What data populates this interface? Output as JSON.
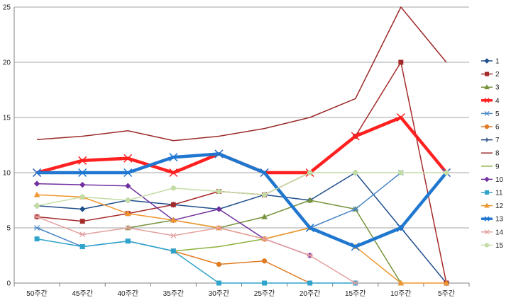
{
  "chart_data": {
    "type": "line",
    "categories": [
      "50주간",
      "45주간",
      "40주간",
      "35주간",
      "30주간",
      "25주간",
      "20주간",
      "15주간",
      "10주간",
      "5주간"
    ],
    "ylim": [
      0,
      25
    ],
    "yticks": [
      0,
      5,
      10,
      15,
      20,
      25
    ],
    "grid": "horizontal",
    "legend": "right",
    "series": [
      {
        "name": "1",
        "color": "#1f4e8c",
        "marker": "diamond",
        "bold": false,
        "values": [
          7,
          6.7,
          7.5,
          7.1,
          6.7,
          8,
          7.5,
          10,
          5,
          0
        ]
      },
      {
        "name": "2",
        "color": "#a52a2a",
        "marker": "square",
        "bold": false,
        "values": [
          6,
          5.6,
          6.3,
          7.1,
          8.3,
          8,
          10,
          13.3,
          20,
          0
        ]
      },
      {
        "name": "3",
        "color": "#77933c",
        "marker": "triangle",
        "bold": false,
        "values": [
          null,
          null,
          5,
          5.7,
          5,
          6,
          7.5,
          6.7,
          0,
          null
        ]
      },
      {
        "name": "4",
        "color": "#ff2020",
        "marker": "x",
        "bold": true,
        "values": [
          10,
          11.1,
          11.3,
          10,
          11.7,
          10,
          10,
          13.3,
          15,
          10
        ]
      },
      {
        "name": "5",
        "color": "#4a86c6",
        "marker": "star",
        "bold": false,
        "values": [
          5,
          3.3,
          3.8,
          2.9,
          null,
          null,
          5,
          6.7,
          10,
          null
        ]
      },
      {
        "name": "6",
        "color": "#e07b24",
        "marker": "circle",
        "bold": false,
        "values": [
          null,
          null,
          null,
          2.9,
          1.7,
          2,
          0,
          null,
          null,
          null
        ]
      },
      {
        "name": "7",
        "color": "#1f3f7a",
        "marker": "plus",
        "bold": false,
        "values": [
          null,
          null,
          null,
          null,
          null,
          null,
          null,
          10,
          null,
          0
        ]
      },
      {
        "name": "8",
        "color": "#9c2a2a",
        "marker": "none",
        "bold": false,
        "values": [
          13,
          13.3,
          13.8,
          12.9,
          13.3,
          14,
          15,
          16.7,
          25,
          20
        ]
      },
      {
        "name": "9",
        "color": "#8db33e",
        "marker": "none",
        "bold": false,
        "values": [
          null,
          null,
          null,
          2.9,
          3.3,
          4,
          5,
          null,
          null,
          null
        ]
      },
      {
        "name": "10",
        "color": "#7030a0",
        "marker": "diamond",
        "bold": false,
        "values": [
          9,
          8.9,
          8.8,
          5.7,
          6.7,
          4,
          2.5,
          null,
          null,
          null
        ]
      },
      {
        "name": "11",
        "color": "#2fa3c9",
        "marker": "square",
        "bold": false,
        "values": [
          4,
          3.3,
          3.8,
          2.9,
          0,
          0,
          0,
          0,
          null,
          null
        ]
      },
      {
        "name": "12",
        "color": "#f0962e",
        "marker": "triangle",
        "bold": false,
        "values": [
          8,
          7.8,
          6.3,
          5.7,
          5,
          4,
          5,
          3.3,
          0,
          0
        ]
      },
      {
        "name": "13",
        "color": "#1f77d0",
        "marker": "x",
        "bold": true,
        "values": [
          10,
          10,
          10,
          11.4,
          11.7,
          10,
          5,
          3.3,
          5,
          10
        ]
      },
      {
        "name": "14",
        "color": "#e4a0a0",
        "marker": "star",
        "bold": false,
        "values": [
          6,
          4.4,
          5,
          4.3,
          5,
          4,
          2.5,
          0,
          null,
          null
        ]
      },
      {
        "name": "15",
        "color": "#c3dca5",
        "marker": "circle",
        "bold": false,
        "values": [
          7,
          7.8,
          7.5,
          8.6,
          8.3,
          8,
          10,
          10,
          10,
          10
        ]
      }
    ]
  }
}
